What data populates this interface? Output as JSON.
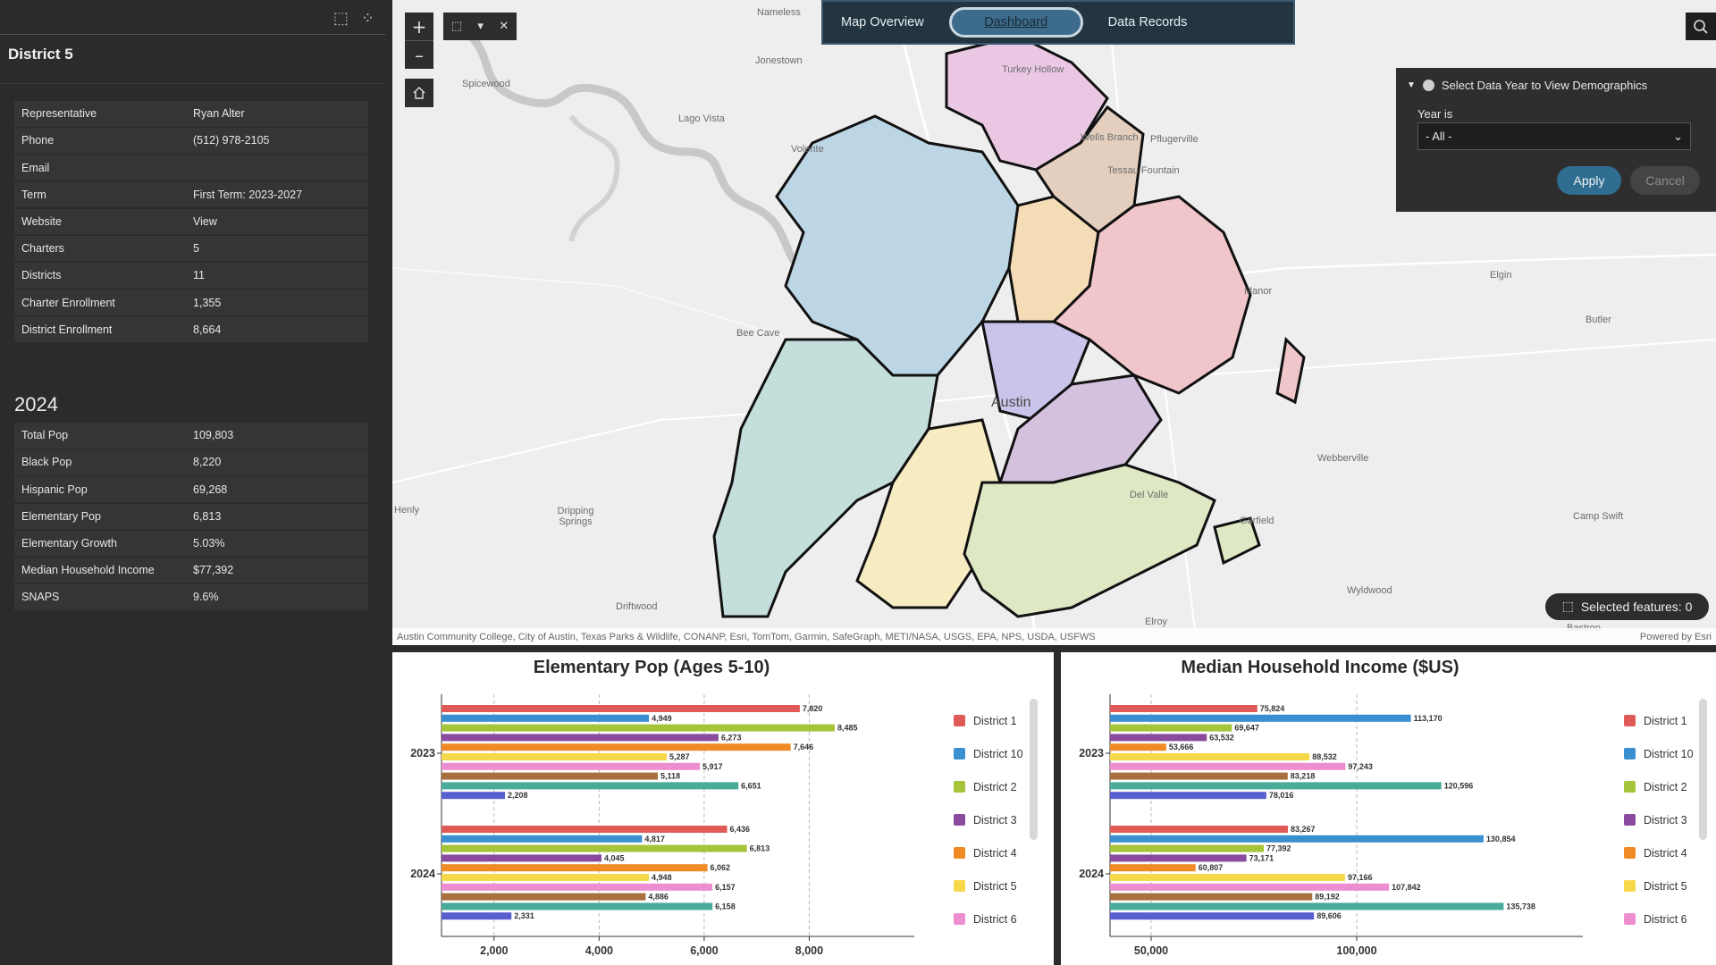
{
  "left_panel": {
    "icons": [
      "clear-selection-icon",
      "grid-apps-icon"
    ],
    "district_title": "District 5",
    "info_rows": [
      {
        "k": "Representative",
        "v": "Ryan Alter"
      },
      {
        "k": "Phone",
        "v": "(512) 978-2105"
      },
      {
        "k": "Email",
        "v": ""
      },
      {
        "k": "Term",
        "v": "First Term: 2023-2027"
      },
      {
        "k": "Website",
        "v": "View"
      },
      {
        "k": "Charters",
        "v": "5"
      },
      {
        "k": "Districts",
        "v": "11"
      },
      {
        "k": "Charter Enrollment",
        "v": "1,355"
      },
      {
        "k": "District Enrollment",
        "v": "8,664"
      }
    ],
    "year_heading": "2024",
    "stat_rows": [
      {
        "k": "Total Pop",
        "v": "109,803"
      },
      {
        "k": "Black Pop",
        "v": "8,220"
      },
      {
        "k": "Hispanic Pop",
        "v": "69,268"
      },
      {
        "k": "Elementary Pop",
        "v": "6,813"
      },
      {
        "k": "Elementary Growth",
        "v": "5.03%"
      },
      {
        "k": "Median Household Income",
        "v": "$77,392"
      },
      {
        "k": "SNAPS",
        "v": "9.6%"
      }
    ]
  },
  "nav": {
    "items": [
      "Map Overview",
      "Dashboard",
      "Data Records"
    ],
    "active": "Dashboard"
  },
  "map": {
    "places": [
      "Nameless",
      "Jonestown",
      "Spicewood",
      "Lago Vista",
      "Volente",
      "Turkey Hollow",
      "Wells Branch",
      "Pflugerville",
      "Tessau Fountain",
      "Manor",
      "Elgin",
      "Butler",
      "Bee Cave",
      "Austin",
      "Webberville",
      "Henly",
      "Dripping Springs",
      "Del Valle",
      "Garfield",
      "Camp Swift",
      "Driftwood",
      "Wyldwood",
      "Elroy",
      "Bastrop"
    ],
    "attribution": "Austin Community College, City of Austin, Texas Parks & Wildlife, CONANP, Esri, TomTom, Garmin, SafeGraph, METI/NASA, USGS, EPA, NPS, USDA, USFWS",
    "powered_by": "Powered by Esri",
    "selected_features": "Selected features: 0",
    "zoom_in": "+",
    "zoom_out": "–"
  },
  "filter": {
    "header": "Select Data Year to View Demographics",
    "label": "Year is",
    "value": "- All -",
    "apply": "Apply",
    "cancel": "Cancel"
  },
  "legend_districts": [
    {
      "name": "District 1",
      "color": "#e05a57"
    },
    {
      "name": "District 10",
      "color": "#3a8fd0"
    },
    {
      "name": "District 2",
      "color": "#a6c43a"
    },
    {
      "name": "District 3",
      "color": "#8a4a9e"
    },
    {
      "name": "District 4",
      "color": "#f08a24"
    },
    {
      "name": "District 5",
      "color": "#f7d84a"
    },
    {
      "name": "District 6",
      "color": "#ec8ed0"
    }
  ],
  "chart_data": [
    {
      "type": "bar",
      "title": "Elementary Pop (Ages 5-10)",
      "orientation": "horizontal",
      "categories": [
        "2023",
        "2024"
      ],
      "xticks": [
        "2,000",
        "4,000",
        "6,000",
        "8,000"
      ],
      "xlim": [
        1000,
        10000
      ],
      "bar_colors": [
        "#e05a57",
        "#3a8fd0",
        "#a6c43a",
        "#8a4a9e",
        "#f08a24",
        "#f7d84a",
        "#ec8ed0",
        "#a8703e",
        "#4aab9a",
        "#5a5fd0"
      ],
      "groups": [
        {
          "values": [
            7820,
            4949,
            8485,
            6273,
            7646,
            5287,
            5917,
            5118,
            6651,
            2208
          ],
          "labels": [
            "7,820",
            "4,949",
            "8,485",
            "6,273",
            "7,646",
            "5,287",
            "5,917",
            "5,118",
            "6,651",
            "2,208"
          ]
        },
        {
          "values": [
            6436,
            4817,
            6813,
            4045,
            6062,
            4948,
            6157,
            4886,
            6158,
            2331
          ],
          "labels": [
            "6,436",
            "4,817",
            "6,813",
            "4,045",
            "6,062",
            "4,948",
            "6,157",
            "4,886",
            "6,158",
            "2,331"
          ]
        }
      ]
    },
    {
      "type": "bar",
      "title": "Median Household Income ($US)",
      "orientation": "horizontal",
      "categories": [
        "2023",
        "2024"
      ],
      "xticks": [
        "50,000",
        "100,000"
      ],
      "xlim": [
        40000,
        155000
      ],
      "bar_colors": [
        "#e05a57",
        "#3a8fd0",
        "#a6c43a",
        "#8a4a9e",
        "#f08a24",
        "#f7d84a",
        "#ec8ed0",
        "#a8703e",
        "#4aab9a",
        "#5a5fd0"
      ],
      "groups": [
        {
          "values": [
            75824,
            113170,
            69647,
            63532,
            53666,
            88532,
            97243,
            83218,
            120596,
            78016
          ],
          "labels": [
            "75,824",
            "113,170",
            "69,647",
            "63,532",
            "53,666",
            "88,532",
            "97,243",
            "83,218",
            "120,596",
            "78,016"
          ]
        },
        {
          "values": [
            83267,
            130854,
            77392,
            73171,
            60807,
            97166,
            107842,
            89192,
            135738,
            89606
          ],
          "labels": [
            "83,267",
            "130,854",
            "77,392",
            "73,171",
            "60,807",
            "97,166",
            "107,842",
            "89,192",
            "135,738",
            "89,606"
          ]
        }
      ]
    }
  ]
}
